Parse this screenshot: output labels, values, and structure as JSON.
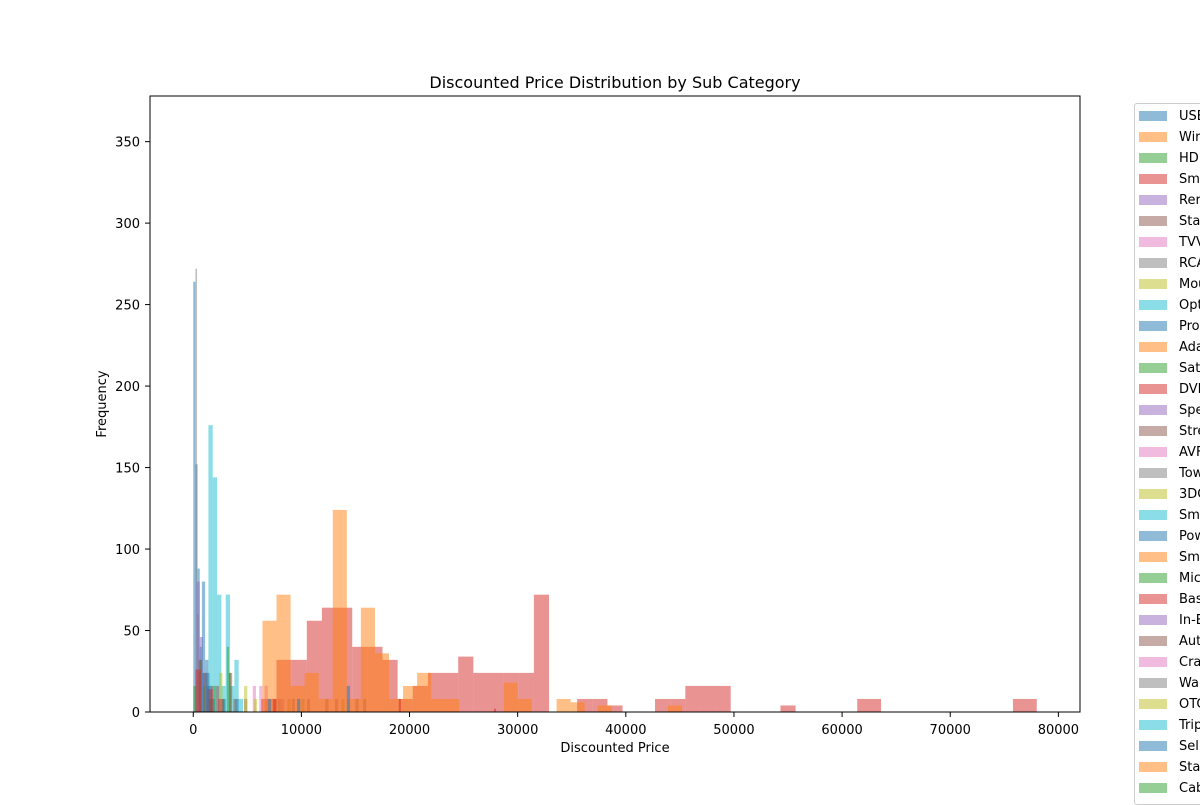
{
  "chart_data": {
    "type": "bar",
    "title": "Discounted Price Distribution by Sub Category",
    "xlabel": "Discounted Price",
    "ylabel": "Frequency",
    "xlim": [
      -4000,
      82000
    ],
    "ylim": [
      0,
      378
    ],
    "xticks": [
      0,
      10000,
      20000,
      30000,
      40000,
      50000,
      60000,
      70000,
      80000
    ],
    "yticks": [
      0,
      50,
      100,
      150,
      200,
      250,
      300,
      350
    ],
    "legend_position": "right-outside",
    "legend": [
      {
        "label": "USB",
        "color": "#1f77b4"
      },
      {
        "label": "Wir",
        "color": "#ff7f0e"
      },
      {
        "label": "HDI",
        "color": "#2ca02c"
      },
      {
        "label": "Sm",
        "color": "#d62728"
      },
      {
        "label": "Rer",
        "color": "#9467bd"
      },
      {
        "label": "Sta",
        "color": "#8c564b"
      },
      {
        "label": "TVV",
        "color": "#e377c2"
      },
      {
        "label": "RCA",
        "color": "#7f7f7f"
      },
      {
        "label": "Mou",
        "color": "#bcbd22"
      },
      {
        "label": "Opt",
        "color": "#17becf"
      },
      {
        "label": "Pro",
        "color": "#1f77b4"
      },
      {
        "label": "Ada",
        "color": "#ff7f0e"
      },
      {
        "label": "Sat",
        "color": "#2ca02c"
      },
      {
        "label": "DVI",
        "color": "#d62728"
      },
      {
        "label": "Spe",
        "color": "#9467bd"
      },
      {
        "label": "Stre",
        "color": "#8c564b"
      },
      {
        "label": "AVF",
        "color": "#e377c2"
      },
      {
        "label": "Tow",
        "color": "#7f7f7f"
      },
      {
        "label": "3DC",
        "color": "#bcbd22"
      },
      {
        "label": "Sm",
        "color": "#17becf"
      },
      {
        "label": "Pow",
        "color": "#1f77b4"
      },
      {
        "label": "Sm",
        "color": "#ff7f0e"
      },
      {
        "label": "Mic",
        "color": "#2ca02c"
      },
      {
        "label": "Bas",
        "color": "#d62728"
      },
      {
        "label": "In-E",
        "color": "#9467bd"
      },
      {
        "label": "Aut",
        "color": "#8c564b"
      },
      {
        "label": "Cra",
        "color": "#e377c2"
      },
      {
        "label": "Wal",
        "color": "#7f7f7f"
      },
      {
        "label": "OTC",
        "color": "#bcbd22"
      },
      {
        "label": "Trip",
        "color": "#17becf"
      },
      {
        "label": "Sel",
        "color": "#1f77b4"
      },
      {
        "label": "Sta",
        "color": "#ff7f0e"
      },
      {
        "label": "Cab",
        "color": "#2ca02c"
      }
    ],
    "series": [
      {
        "color": "#1f77b4",
        "bins": [
          [
            0,
            200,
            264
          ],
          [
            200,
            400,
            152
          ],
          [
            400,
            600,
            88
          ],
          [
            600,
            800,
            40
          ],
          [
            800,
            1000,
            24
          ]
        ]
      },
      {
        "color": "#7f7f7f",
        "bins": [
          [
            200,
            350,
            272
          ],
          [
            350,
            500,
            60
          ],
          [
            500,
            700,
            24
          ]
        ]
      },
      {
        "color": "#9467bd",
        "bins": [
          [
            300,
            600,
            80
          ],
          [
            600,
            900,
            46
          ],
          [
            900,
            1200,
            24
          ],
          [
            1200,
            1500,
            16
          ],
          [
            1500,
            1800,
            8
          ]
        ]
      },
      {
        "color": "#17becf",
        "bins": [
          [
            1400,
            1800,
            176
          ],
          [
            1800,
            2200,
            144
          ],
          [
            2200,
            2600,
            72
          ],
          [
            2600,
            3000,
            16
          ],
          [
            3000,
            3400,
            72
          ],
          [
            3400,
            3800,
            16
          ],
          [
            3800,
            4200,
            32
          ],
          [
            4200,
            4600,
            8
          ]
        ]
      },
      {
        "color": "#1f77b4",
        "bins": [
          [
            800,
            1100,
            80
          ],
          [
            1100,
            1400,
            32
          ],
          [
            1400,
            1700,
            16
          ],
          [
            1700,
            2000,
            8
          ]
        ]
      },
      {
        "color": "#2ca02c",
        "bins": [
          [
            0,
            300,
            16
          ],
          [
            600,
            800,
            32
          ],
          [
            900,
            1100,
            16
          ],
          [
            1500,
            1700,
            8
          ],
          [
            1900,
            2100,
            16
          ],
          [
            2700,
            2900,
            8
          ],
          [
            3100,
            3300,
            40
          ],
          [
            3300,
            3500,
            24
          ]
        ]
      },
      {
        "color": "#8c564b",
        "bins": [
          [
            500,
            800,
            32
          ],
          [
            1000,
            1300,
            24
          ],
          [
            1600,
            1900,
            16
          ],
          [
            2100,
            2400,
            16
          ],
          [
            3300,
            3600,
            24
          ],
          [
            3700,
            4000,
            8
          ],
          [
            4700,
            5000,
            8
          ]
        ]
      },
      {
        "color": "#e377c2",
        "bins": [
          [
            5500,
            5800,
            16
          ],
          [
            6100,
            6400,
            16
          ],
          [
            6600,
            6900,
            16
          ],
          [
            7300,
            7600,
            8
          ],
          [
            8100,
            8400,
            8
          ]
        ]
      },
      {
        "color": "#bcbd22",
        "bins": [
          [
            2400,
            2700,
            24
          ],
          [
            4700,
            5000,
            16
          ],
          [
            5600,
            5900,
            8
          ],
          [
            8700,
            9000,
            8
          ],
          [
            10000,
            10300,
            8
          ],
          [
            13700,
            14000,
            8
          ]
        ]
      },
      {
        "color": "#7f7f7f",
        "bins": [
          [
            7800,
            8100,
            8
          ],
          [
            9100,
            9400,
            8
          ],
          [
            10500,
            10800,
            8
          ],
          [
            12200,
            12500,
            8
          ],
          [
            13100,
            13400,
            8
          ],
          [
            15000,
            15300,
            8
          ],
          [
            15700,
            16000,
            8
          ]
        ]
      },
      {
        "color": "#d62728",
        "bins": [
          [
            6300,
            7700,
            8
          ],
          [
            7700,
            9100,
            32
          ],
          [
            9100,
            10500,
            32
          ],
          [
            10500,
            11900,
            56
          ],
          [
            11900,
            13300,
            64
          ],
          [
            13300,
            14700,
            64
          ],
          [
            14700,
            16100,
            40
          ],
          [
            16100,
            17500,
            40
          ],
          [
            17500,
            18900,
            32
          ],
          [
            18900,
            20300,
            8
          ],
          [
            20300,
            21700,
            16
          ],
          [
            21700,
            23100,
            24
          ],
          [
            23100,
            24500,
            24
          ],
          [
            24500,
            25900,
            34
          ],
          [
            25900,
            27300,
            24
          ],
          [
            27300,
            28700,
            24
          ],
          [
            28700,
            30100,
            24
          ],
          [
            30100,
            31500,
            24
          ],
          [
            31500,
            32900,
            72
          ],
          [
            35500,
            36900,
            8
          ],
          [
            36900,
            38300,
            8
          ],
          [
            38300,
            39700,
            4
          ],
          [
            42700,
            44100,
            8
          ],
          [
            44100,
            45500,
            8
          ],
          [
            45500,
            46900,
            16
          ],
          [
            46900,
            48300,
            16
          ],
          [
            48300,
            49700,
            16
          ],
          [
            54300,
            55700,
            4
          ],
          [
            61400,
            63600,
            8
          ],
          [
            75800,
            78000,
            8
          ]
        ]
      },
      {
        "color": "#ff7f0e",
        "bins": [
          [
            6400,
            7700,
            56
          ],
          [
            7700,
            9000,
            72
          ],
          [
            9000,
            10300,
            16
          ],
          [
            10300,
            11600,
            24
          ],
          [
            11600,
            12900,
            8
          ],
          [
            12900,
            14200,
            124
          ],
          [
            14200,
            15500,
            8
          ],
          [
            15500,
            16800,
            64
          ],
          [
            16800,
            18100,
            36
          ],
          [
            18100,
            19400,
            8
          ],
          [
            19400,
            20700,
            16
          ],
          [
            20700,
            22000,
            24
          ],
          [
            22000,
            23300,
            8
          ],
          [
            23300,
            24600,
            8
          ],
          [
            28700,
            30000,
            18
          ],
          [
            30000,
            31300,
            8
          ],
          [
            33600,
            34900,
            8
          ],
          [
            34900,
            36200,
            6
          ],
          [
            37400,
            38700,
            4
          ],
          [
            43900,
            45200,
            4
          ]
        ]
      },
      {
        "color": "#d62728",
        "bins": [
          [
            200,
            700,
            26
          ],
          [
            1300,
            1800,
            14
          ],
          [
            2300,
            2800,
            8
          ],
          [
            7400,
            7700,
            8
          ],
          [
            19000,
            19200,
            8
          ],
          [
            27800,
            28000,
            2
          ]
        ]
      },
      {
        "color": "#1f77b4",
        "bins": [
          [
            1200,
            1500,
            24
          ],
          [
            2700,
            3000,
            8
          ],
          [
            3900,
            4200,
            8
          ],
          [
            6900,
            7200,
            8
          ],
          [
            9600,
            9900,
            8
          ],
          [
            14200,
            14500,
            16
          ]
        ]
      }
    ]
  }
}
